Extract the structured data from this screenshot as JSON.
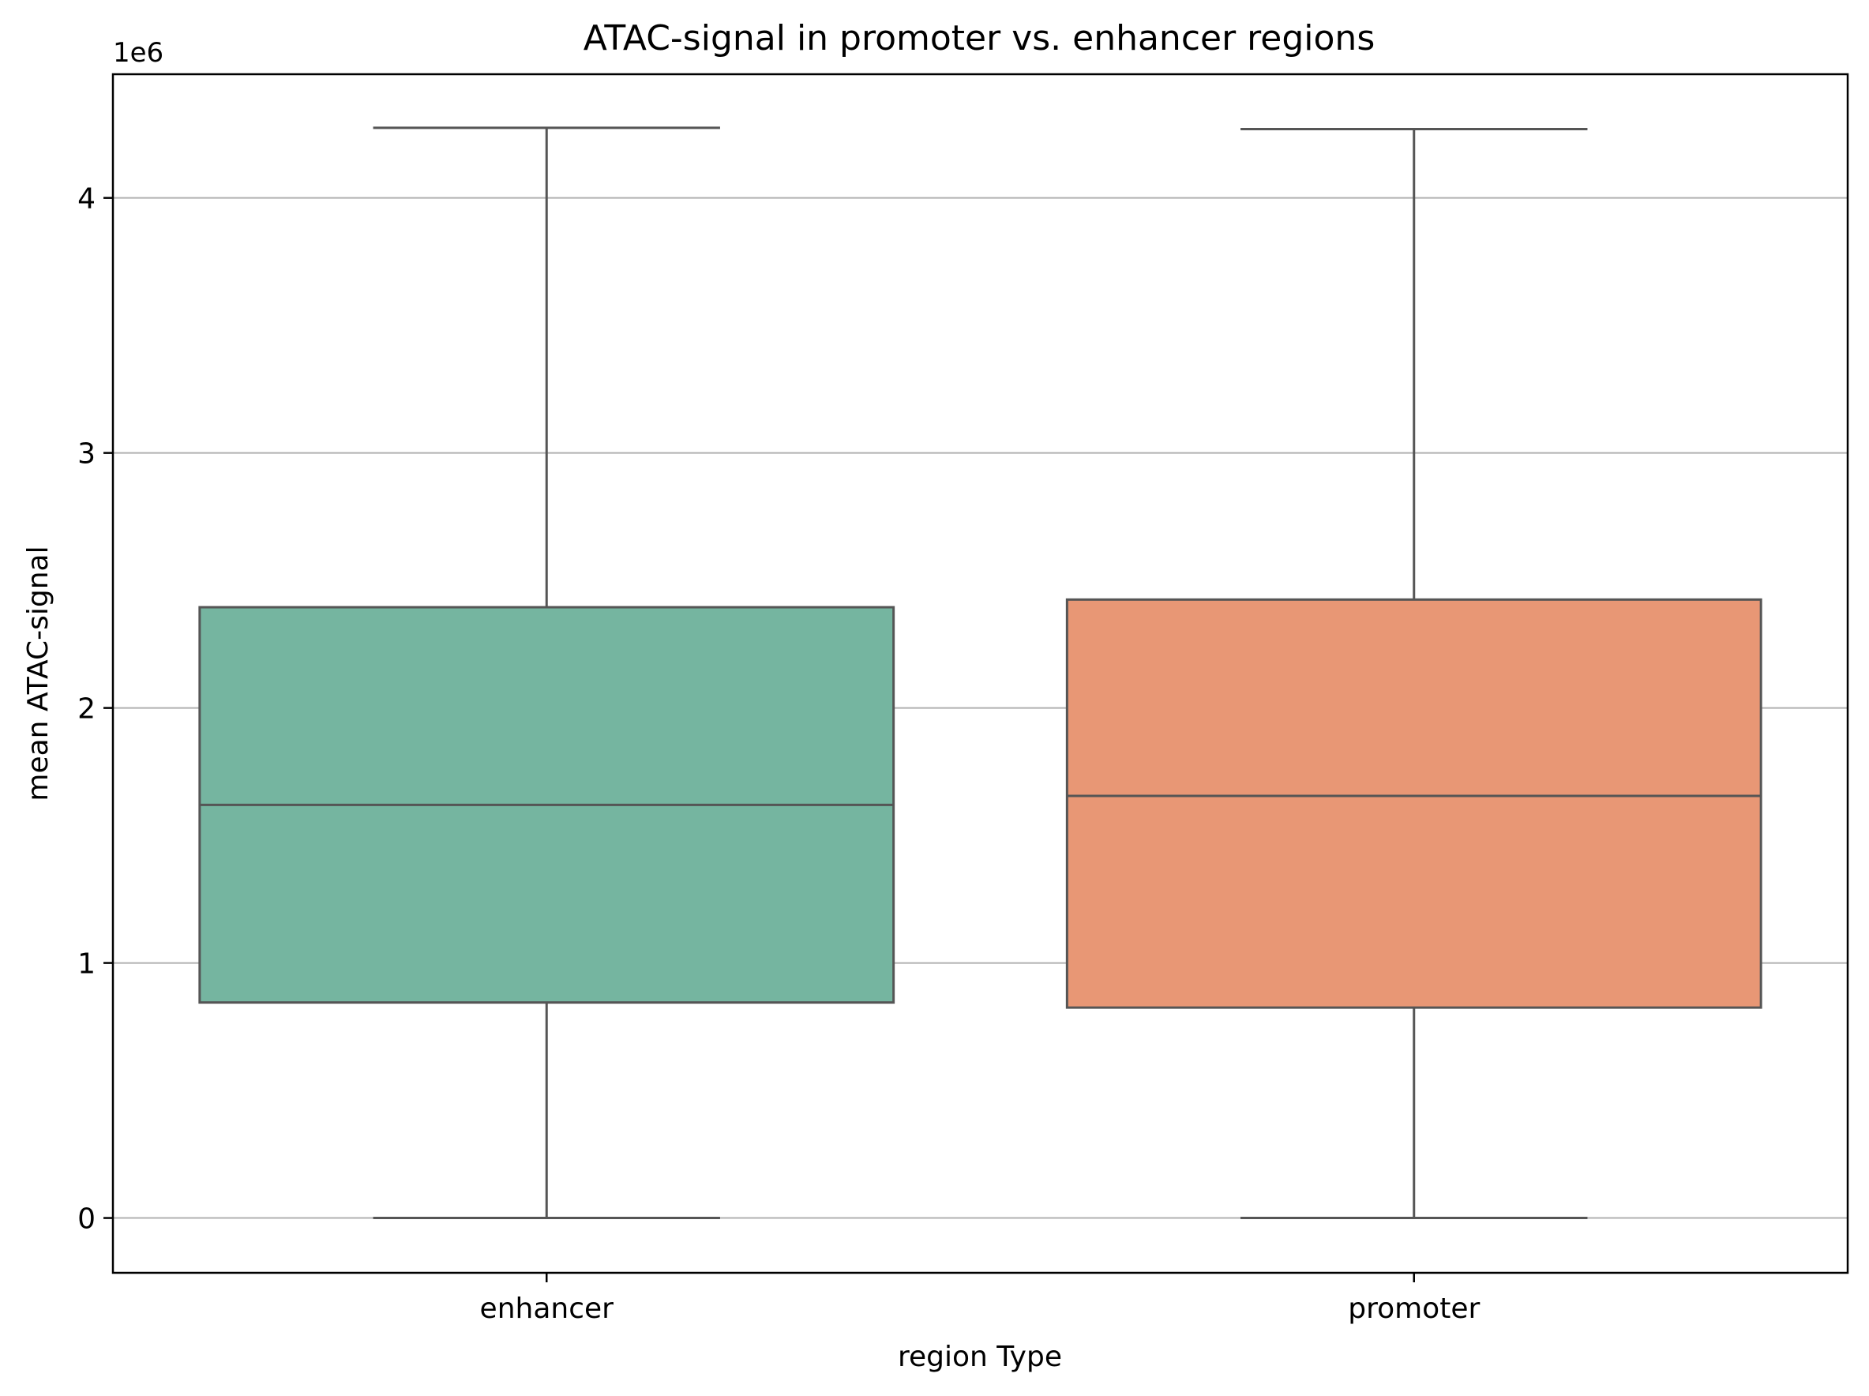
{
  "chart_data": {
    "type": "box",
    "title": "ATAC-signal in promoter vs. enhancer regions",
    "xlabel": "region Type",
    "ylabel": "mean ATAC-signal",
    "y_offset_label": "1e6",
    "y_scale": 1000000,
    "ylim": [
      -215000,
      4485000
    ],
    "yticks": [
      0,
      1000000,
      2000000,
      3000000,
      4000000
    ],
    "ytick_labels": [
      "0",
      "1",
      "2",
      "3",
      "4"
    ],
    "grid": "y",
    "categories": [
      "enhancer",
      "promoter"
    ],
    "boxes": [
      {
        "category": "enhancer",
        "whisker_low": 0,
        "q1": 845000,
        "median": 1620000,
        "q3": 2395000,
        "whisker_high": 4275000,
        "color": "#75b5a0"
      },
      {
        "category": "promoter",
        "whisker_low": 0,
        "q1": 825000,
        "median": 1655000,
        "q3": 2425000,
        "whisker_high": 4270000,
        "color": "#e89775"
      }
    ],
    "line_color": "#555555",
    "grid_color": "#b0b0b0"
  }
}
